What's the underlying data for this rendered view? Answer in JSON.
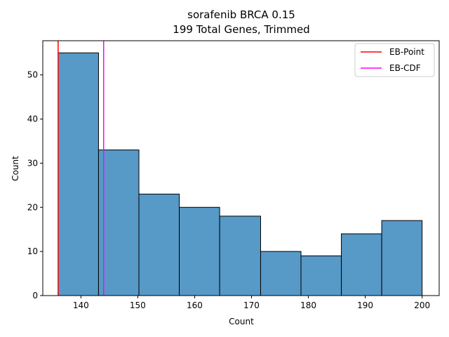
{
  "chart_data": {
    "type": "bar",
    "title_line1": "sorafenib BRCA 0.15",
    "title_line2": "199 Total Genes, Trimmed",
    "xlabel": "Count",
    "ylabel": "Count",
    "xlim": [
      133.3,
      203.0
    ],
    "ylim": [
      0,
      57.75
    ],
    "x_ticks": [
      140,
      150,
      160,
      170,
      180,
      190,
      200
    ],
    "y_ticks": [
      0,
      10,
      20,
      30,
      40,
      50
    ],
    "bins": [
      {
        "start": 136.0,
        "end": 143.1,
        "count": 55
      },
      {
        "start": 143.1,
        "end": 150.2,
        "count": 33
      },
      {
        "start": 150.2,
        "end": 157.3,
        "count": 23
      },
      {
        "start": 157.3,
        "end": 164.4,
        "count": 20
      },
      {
        "start": 164.4,
        "end": 171.6,
        "count": 18
      },
      {
        "start": 171.6,
        "end": 178.7,
        "count": 10
      },
      {
        "start": 178.7,
        "end": 185.8,
        "count": 9
      },
      {
        "start": 185.8,
        "end": 192.9,
        "count": 14
      },
      {
        "start": 192.9,
        "end": 200.0,
        "count": 17
      }
    ],
    "vlines": [
      {
        "name": "EB-Point",
        "x": 136.0,
        "color": "#ff0000"
      },
      {
        "name": "EB-CDF",
        "x": 144.0,
        "color": "#ff00ff"
      }
    ],
    "bar_color": "#5799c7",
    "legend_position": "top-right",
    "grid": false
  }
}
